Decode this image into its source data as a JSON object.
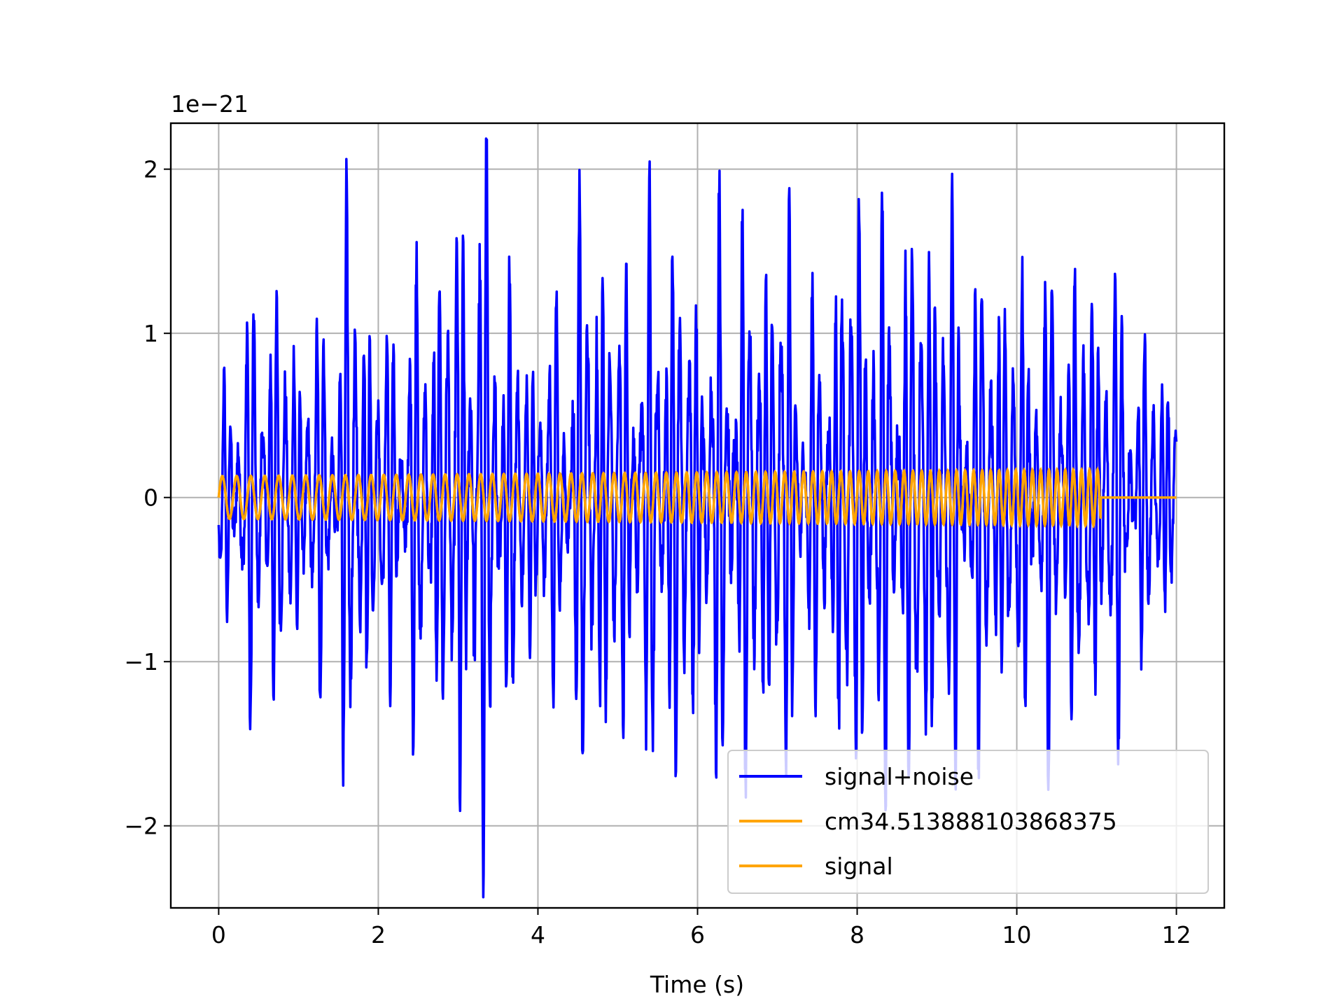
{
  "chart_data": {
    "type": "line",
    "title": "",
    "xlabel": "Time (s)",
    "ylabel": "",
    "y_offset_label": "1e−21",
    "xlim": [
      -0.6,
      12.6
    ],
    "ylim": [
      -2.5,
      2.28
    ],
    "x_ticks": [
      0,
      2,
      4,
      6,
      8,
      10,
      12
    ],
    "x_tick_labels": [
      "0",
      "2",
      "4",
      "6",
      "8",
      "10",
      "12"
    ],
    "y_ticks": [
      -2,
      -1,
      0,
      1,
      2
    ],
    "y_tick_labels": [
      "−2",
      "−1",
      "0",
      "1",
      "2"
    ],
    "grid": true,
    "legend_position": "lower-right",
    "series": [
      {
        "name": "signal+noise",
        "color": "#0000ff",
        "t_start": 0,
        "t_end": 12,
        "envelope": [
          [
            0.0,
            0.6
          ],
          [
            0.3,
            1.1
          ],
          [
            0.6,
            1.4
          ],
          [
            1.0,
            0.9
          ],
          [
            1.5,
            1.3
          ],
          [
            1.6,
            1.8
          ],
          [
            2.0,
            1.0
          ],
          [
            2.5,
            1.4
          ],
          [
            2.9,
            1.6
          ],
          [
            3.2,
            2.2
          ],
          [
            3.4,
            2.0
          ],
          [
            3.7,
            1.2
          ],
          [
            4.0,
            0.9
          ],
          [
            4.3,
            1.3
          ],
          [
            4.6,
            1.9
          ],
          [
            5.0,
            1.3
          ],
          [
            5.6,
            1.8
          ],
          [
            6.0,
            1.3
          ],
          [
            6.4,
            1.9
          ],
          [
            6.8,
            1.5
          ],
          [
            7.0,
            1.8
          ],
          [
            7.5,
            1.1
          ],
          [
            8.0,
            1.9
          ],
          [
            8.5,
            1.6
          ],
          [
            8.8,
            1.8
          ],
          [
            9.3,
            1.6
          ],
          [
            9.7,
            1.4
          ],
          [
            10.0,
            1.3
          ],
          [
            10.5,
            1.5
          ],
          [
            11.0,
            1.3
          ],
          [
            11.2,
            1.4
          ],
          [
            11.6,
            0.9
          ],
          [
            12.0,
            0.8
          ]
        ]
      },
      {
        "name": "cm34.513888103868375",
        "color": "#ffa500",
        "t_start": 0,
        "t_end": 11.05,
        "amplitude_start": 0.13,
        "amplitude_end": 0.17,
        "freq_start_hz": 5.5,
        "freq_end_hz": 10.0
      },
      {
        "name": "signal",
        "color": "#ffa500",
        "t_start": 0,
        "t_end": 12,
        "amplitude_start": 0.13,
        "amplitude_end": 0.17,
        "freq_start_hz": 5.5,
        "freq_end_hz": 10.0,
        "zero_after": 11.05
      }
    ]
  }
}
